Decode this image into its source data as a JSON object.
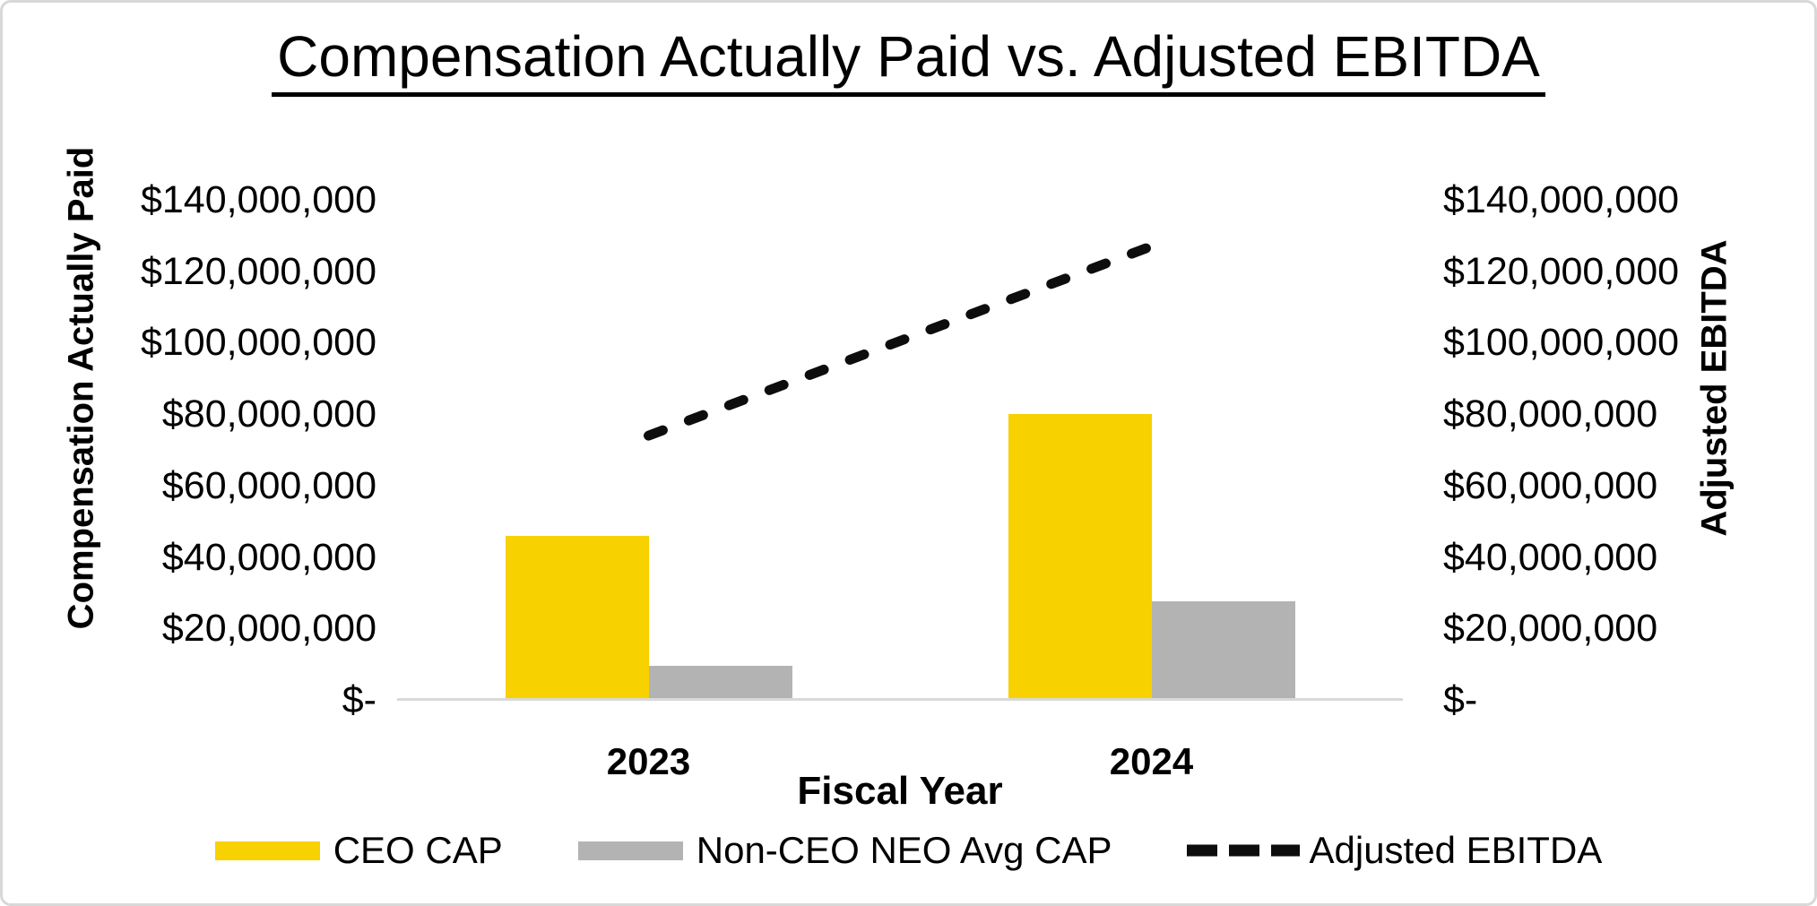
{
  "chart_data": {
    "type": "bar",
    "combo": true,
    "title": "Compensation Actually Paid vs. Adjusted EBITDA",
    "categories": [
      "2023",
      "2024"
    ],
    "series": [
      {
        "name": "CEO CAP",
        "type": "bar",
        "color": "#F8D100",
        "values": [
          46000000,
          80000000
        ]
      },
      {
        "name": "Non-CEO NEO Avg CAP",
        "type": "bar",
        "color": "#B3B3B3",
        "values": [
          9500000,
          27500000
        ]
      },
      {
        "name": "Adjusted EBITDA",
        "type": "line",
        "style": "dashed",
        "color": "#0D0D0D",
        "values": [
          74000000,
          127000000
        ]
      }
    ],
    "xlabel": "Fiscal Year",
    "ylabel_left": "Compensation Actually Paid",
    "ylabel_right": "Adjusted EBITDA",
    "ylim": [
      0,
      140000000
    ],
    "ytick_step": 20000000,
    "ytick_labels": [
      "$-",
      "$20,000,000",
      "$40,000,000",
      "$60,000,000",
      "$80,000,000",
      "$100,000,000",
      "$120,000,000",
      "$140,000,000"
    ],
    "grid": false,
    "legend_position": "bottom",
    "axis_line_color": "#D9D9D9"
  }
}
